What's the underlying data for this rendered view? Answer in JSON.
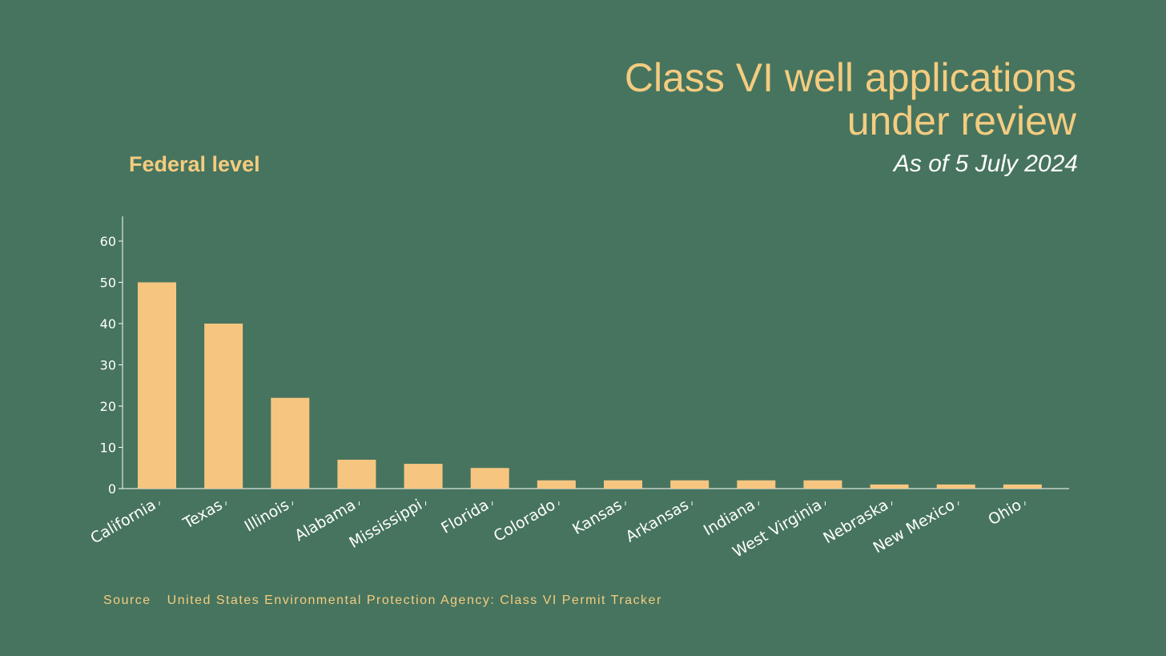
{
  "header": {
    "title_line1": "Class VI well applications",
    "title_line2": "under review",
    "subtitle": "As of 5 July 2024",
    "level": "Federal level"
  },
  "footer": {
    "source_label": "Source",
    "source_text": "United States Environmental Protection Agency: Class VI Permit Tracker"
  },
  "colors": {
    "background": "#47745e",
    "bar": "#f6c681",
    "axis": "#ffffff",
    "accent": "#f4cc80"
  },
  "chart_data": {
    "type": "bar",
    "categories": [
      "California",
      "Texas",
      "Illinois",
      "Alabama",
      "Mississippi",
      "Florida",
      "Colorado",
      "Kansas",
      "Arkansas",
      "Indiana",
      "West Virginia",
      "Nebraska",
      "New Mexico",
      "Ohio"
    ],
    "values": [
      50,
      40,
      22,
      7,
      6,
      5,
      2,
      2,
      2,
      2,
      2,
      1,
      1,
      1
    ],
    "yticks": [
      0,
      10,
      20,
      30,
      40,
      50,
      60
    ],
    "ylim": [
      0,
      66
    ],
    "grid": false,
    "legend": "none"
  }
}
